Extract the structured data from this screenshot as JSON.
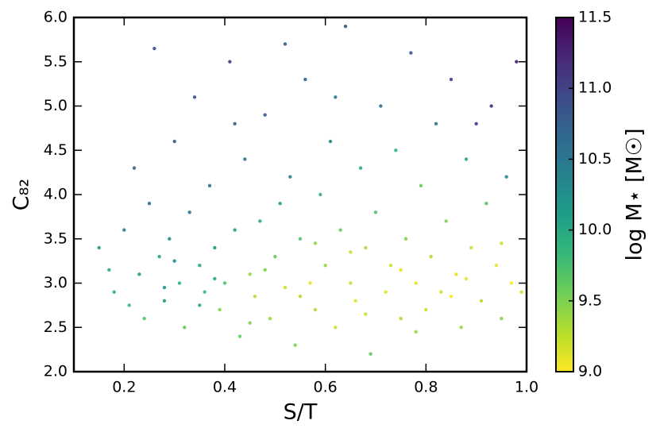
{
  "chart_data": {
    "type": "scatter",
    "xlabel": "S/T",
    "ylabel": "C₈₂",
    "colorbar_label": "log M⋆ [M☉]",
    "colormap": "viridis_r",
    "xlim": [
      0.1,
      1.0
    ],
    "ylim": [
      2.0,
      6.0
    ],
    "clim": [
      9.0,
      11.5
    ],
    "xticks": [
      0.2,
      0.4,
      0.6,
      0.8,
      {
        "value": 1,
        "label": "1.0"
      }
    ],
    "yticks": [
      {
        "value": 2,
        "label": "2.0"
      },
      2.5,
      {
        "value": 3,
        "label": "3.0"
      },
      3.5,
      {
        "value": 4,
        "label": "4.0"
      },
      4.5,
      {
        "value": 5,
        "label": "5.0"
      },
      5.5,
      {
        "value": 6,
        "label": "6.0"
      }
    ],
    "cticks": [
      {
        "value": 9,
        "label": "9.0"
      },
      9.5,
      {
        "value": 10,
        "label": "10.0"
      },
      10.5,
      {
        "value": 11,
        "label": "11.0"
      },
      11.5
    ],
    "x": [
      0.15,
      0.17,
      0.18,
      0.2,
      0.21,
      0.22,
      0.23,
      0.24,
      0.25,
      0.26,
      0.27,
      0.28,
      0.29,
      0.3,
      0.31,
      0.32,
      0.33,
      0.34,
      0.35,
      0.36,
      0.37,
      0.38,
      0.39,
      0.4,
      0.41,
      0.42,
      0.43,
      0.44,
      0.45,
      0.46,
      0.47,
      0.48,
      0.49,
      0.5,
      0.51,
      0.52,
      0.53,
      0.54,
      0.55,
      0.56,
      0.57,
      0.58,
      0.59,
      0.6,
      0.61,
      0.62,
      0.63,
      0.64,
      0.65,
      0.66,
      0.67,
      0.68,
      0.69,
      0.7,
      0.71,
      0.72,
      0.73,
      0.74,
      0.75,
      0.76,
      0.77,
      0.78,
      0.79,
      0.8,
      0.81,
      0.82,
      0.83,
      0.84,
      0.85,
      0.86,
      0.87,
      0.88,
      0.89,
      0.9,
      0.91,
      0.92,
      0.93,
      0.94,
      0.95,
      0.96,
      0.97,
      0.98,
      0.99,
      0.35,
      0.3,
      0.45,
      0.55,
      0.65,
      0.75,
      0.85,
      0.95,
      0.28,
      0.38,
      0.48,
      0.58,
      0.68,
      0.78,
      0.88,
      0.42,
      0.62,
      0.52
    ],
    "y": [
      3.4,
      3.15,
      2.9,
      3.6,
      2.75,
      4.3,
      3.1,
      2.6,
      3.9,
      5.65,
      3.3,
      2.8,
      3.5,
      4.6,
      3.0,
      2.5,
      3.8,
      5.1,
      3.2,
      2.9,
      4.1,
      3.4,
      2.7,
      3.0,
      5.5,
      3.6,
      2.4,
      4.4,
      3.1,
      2.85,
      3.7,
      4.9,
      2.6,
      3.3,
      3.9,
      2.95,
      4.2,
      2.3,
      3.5,
      5.3,
      3.0,
      2.7,
      4.0,
      3.2,
      4.6,
      2.5,
      3.6,
      5.9,
      3.0,
      2.8,
      4.3,
      3.4,
      2.2,
      3.8,
      5.0,
      2.9,
      3.2,
      4.5,
      2.6,
      3.5,
      5.6,
      3.0,
      4.1,
      2.7,
      3.3,
      4.8,
      2.9,
      3.7,
      5.3,
      3.1,
      2.5,
      4.4,
      3.4,
      4.8,
      2.8,
      3.9,
      5.0,
      3.2,
      2.6,
      4.2,
      3.0,
      5.5,
      2.9,
      2.75,
      3.25,
      2.55,
      2.85,
      3.35,
      3.15,
      2.85,
      3.45,
      2.95,
      3.05,
      3.15,
      3.45,
      2.65,
      2.45,
      3.05,
      4.8,
      5.1,
      5.7
    ],
    "c": [
      10.2,
      10.0,
      9.9,
      10.4,
      9.8,
      10.7,
      10.1,
      9.7,
      10.6,
      10.9,
      10.0,
      10.1,
      10.3,
      10.8,
      9.9,
      9.6,
      10.5,
      10.9,
      10.0,
      9.8,
      10.6,
      10.2,
      9.5,
      9.7,
      11.1,
      10.1,
      9.6,
      10.5,
      9.4,
      9.3,
      10.0,
      10.8,
      9.4,
      9.6,
      10.1,
      9.2,
      10.4,
      9.5,
      9.7,
      10.7,
      9.1,
      9.3,
      9.9,
      9.4,
      10.3,
      9.2,
      9.6,
      10.9,
      9.2,
      9.1,
      10.0,
      9.3,
      9.6,
      9.7,
      10.6,
      9.1,
      9.2,
      9.9,
      9.3,
      9.5,
      10.8,
      9.1,
      9.6,
      9.2,
      9.3,
      10.5,
      9.2,
      9.5,
      11.0,
      9.1,
      9.4,
      10.0,
      9.2,
      11.1,
      9.3,
      9.7,
      11.2,
      9.1,
      9.5,
      10.3,
      9.0,
      11.3,
      9.2,
      10.0,
      10.3,
      9.5,
      9.3,
      9.2,
      9.1,
      9.0,
      9.2,
      10.2,
      10.0,
      9.5,
      9.4,
      9.2,
      9.4,
      9.1,
      10.7,
      10.5,
      10.8
    ]
  }
}
